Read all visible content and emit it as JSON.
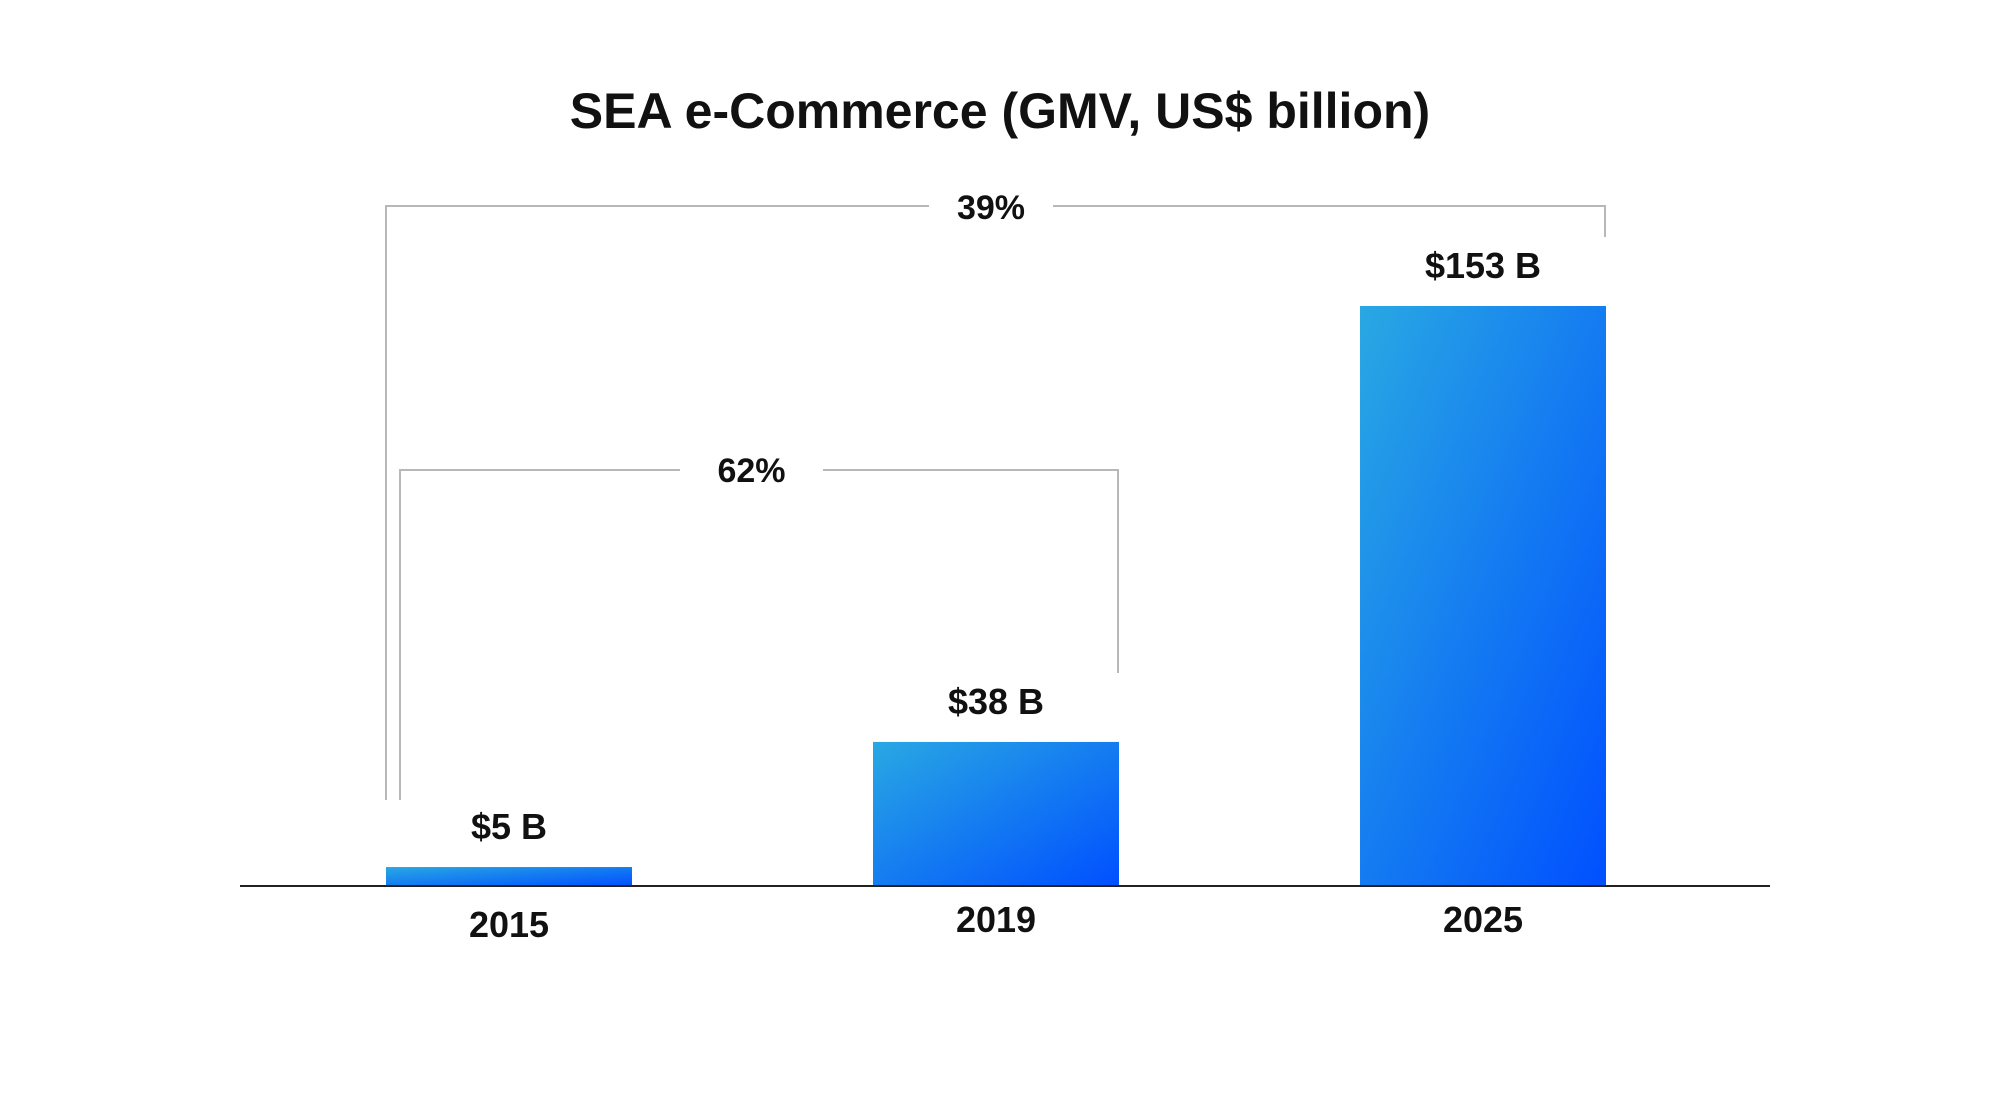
{
  "chart_data": {
    "type": "bar",
    "title": "SEA e-Commerce (GMV, US$ billion)",
    "xlabel": "",
    "ylabel": "",
    "categories": [
      "2015",
      "2019",
      "2025"
    ],
    "values": [
      5,
      38,
      153
    ],
    "value_labels": [
      "$5 B",
      "$38 B",
      "$153 B"
    ],
    "ylim": [
      0,
      153
    ],
    "grid": false,
    "legend": "none",
    "bar_gradient": [
      "#29a8e3",
      "#0050ff"
    ],
    "annotations": [
      {
        "type": "bracket",
        "from": "2015",
        "to": "2019",
        "label": "62%"
      },
      {
        "type": "bracket",
        "from": "2015",
        "to": "2025",
        "label": "39%"
      }
    ]
  }
}
